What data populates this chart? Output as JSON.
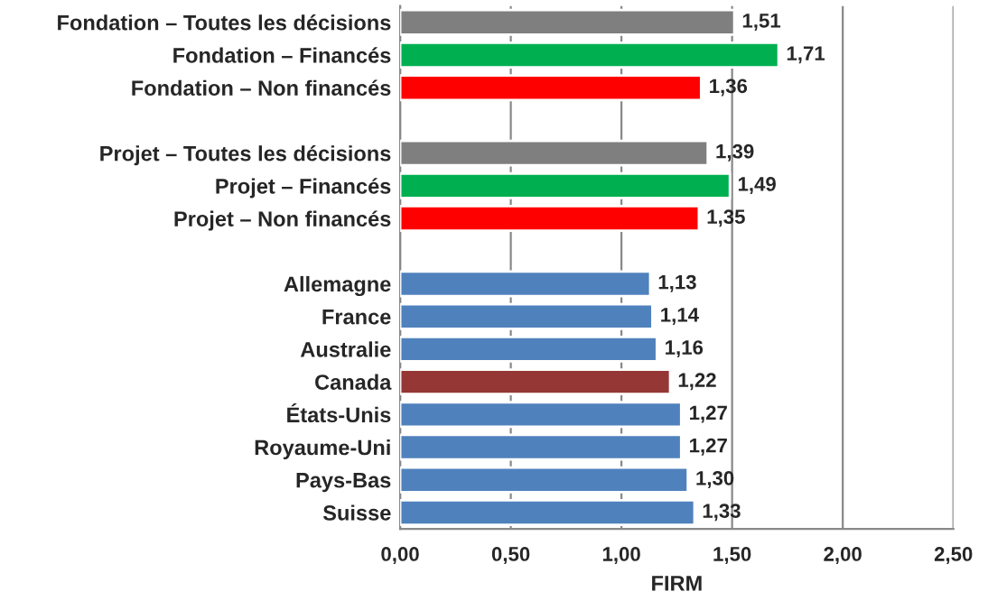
{
  "chart_data": {
    "type": "bar",
    "orientation": "horizontal",
    "xlabel": "FIRM",
    "categories": [
      "Fondation – Toutes les décisions",
      "Fondation – Financés",
      "Fondation – Non financés",
      null,
      "Projet – Toutes les décisions",
      "Projet – Financés",
      "Projet – Non financés",
      null,
      "Allemagne",
      "France",
      "Australie",
      "Canada",
      "États-Unis",
      "Royaume-Uni",
      "Pays-Bas",
      "Suisse"
    ],
    "values": [
      1.51,
      1.71,
      1.36,
      null,
      1.39,
      1.49,
      1.35,
      null,
      1.13,
      1.14,
      1.16,
      1.22,
      1.27,
      1.27,
      1.3,
      1.33
    ],
    "value_labels": [
      "1,51",
      "1,71",
      "1,36",
      null,
      "1,39",
      "1,49",
      "1,35",
      null,
      "1,13",
      "1,14",
      "1,16",
      "1,22",
      "1,27",
      "1,27",
      "1,30",
      "1,33"
    ],
    "colors": [
      "#7f7f7f",
      "#00b050",
      "#ff0000",
      null,
      "#7f7f7f",
      "#00b050",
      "#ff0000",
      null,
      "#4f81bd",
      "#4f81bd",
      "#4f81bd",
      "#953735",
      "#4f81bd",
      "#4f81bd",
      "#4f81bd",
      "#4f81bd"
    ],
    "xlim": [
      0,
      2.5
    ],
    "xticks": [
      {
        "value": 0,
        "label": "0,00"
      },
      {
        "value": 0.5,
        "label": "0,50"
      },
      {
        "value": 1,
        "label": "1,00"
      },
      {
        "value": 1.5,
        "label": "1,50"
      },
      {
        "value": 2,
        "label": "2,00"
      },
      {
        "value": 2.5,
        "label": "2,50"
      }
    ],
    "grid": "x"
  }
}
